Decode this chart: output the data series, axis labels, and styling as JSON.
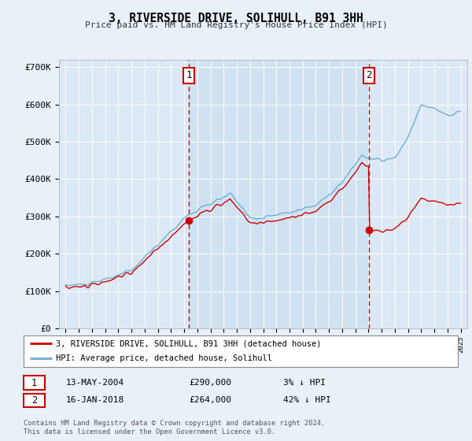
{
  "title": "3, RIVERSIDE DRIVE, SOLIHULL, B91 3HH",
  "subtitle": "Price paid vs. HM Land Registry's House Price Index (HPI)",
  "legend_line1": "3, RIVERSIDE DRIVE, SOLIHULL, B91 3HH (detached house)",
  "legend_line2": "HPI: Average price, detached house, Solihull",
  "annotation1_date": "13-MAY-2004",
  "annotation1_price": "£290,000",
  "annotation1_hpi": "3% ↓ HPI",
  "annotation1_year": 2004.37,
  "annotation1_value": 290000,
  "annotation2_date": "16-JAN-2018",
  "annotation2_price": "£264,000",
  "annotation2_hpi": "42% ↓ HPI",
  "annotation2_year": 2018.04,
  "annotation2_value": 264000,
  "hpi_color": "#6aafd6",
  "sale_color": "#cc0000",
  "annotation_color": "#cc0000",
  "background_color": "#e8f0f8",
  "plot_bg_color": "#dce8f5",
  "shade_color": "#c8dff0",
  "grid_color": "#ffffff",
  "ylim": [
    0,
    720000
  ],
  "yticks": [
    0,
    100000,
    200000,
    300000,
    400000,
    500000,
    600000,
    700000
  ],
  "ytick_labels": [
    "£0",
    "£100K",
    "£200K",
    "£300K",
    "£400K",
    "£500K",
    "£600K",
    "£700K"
  ],
  "xmin": 1994.5,
  "xmax": 2025.5,
  "footnote": "Contains HM Land Registry data © Crown copyright and database right 2024.\nThis data is licensed under the Open Government Licence v3.0."
}
